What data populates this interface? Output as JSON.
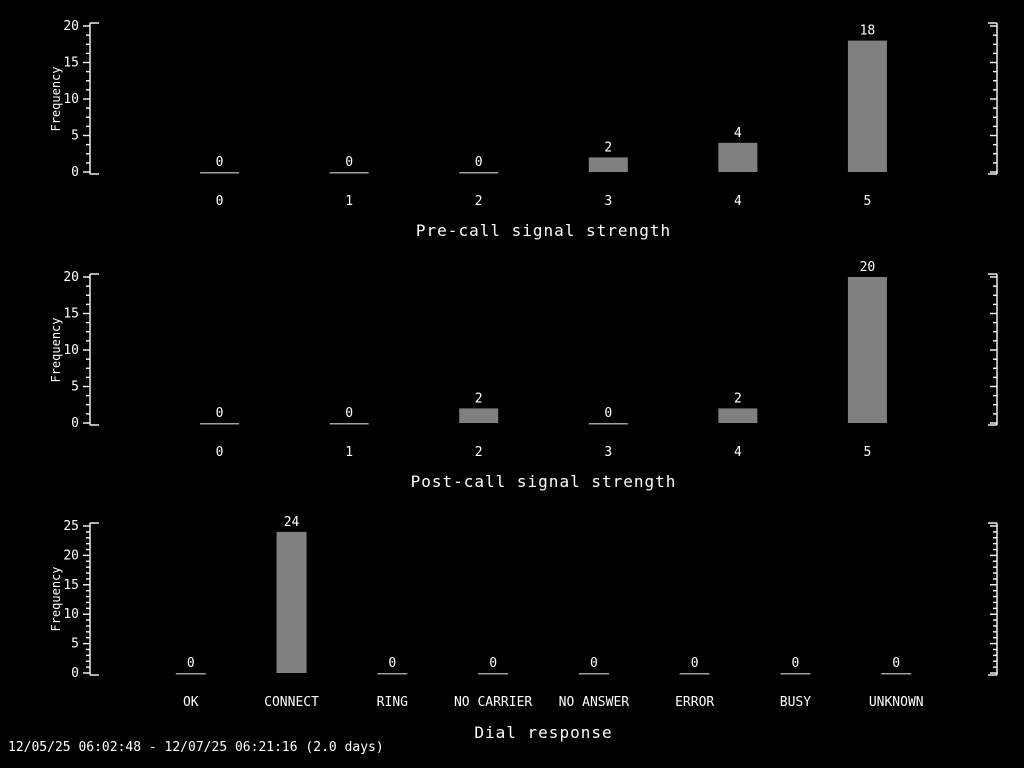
{
  "colors": {
    "background": "#000000",
    "text": "#ffffff",
    "bar": "#808080",
    "zero_line": "#a0a0a0",
    "axis": "#ffffff"
  },
  "footer": {
    "time_range": "12/05/25 06:02:48 - 12/07/25 06:21:16 (2.0 days)"
  },
  "chart_data": [
    {
      "type": "bar",
      "title": "Pre-call signal strength",
      "ylabel": "Frequency",
      "xlabel": "",
      "categories": [
        "0",
        "1",
        "2",
        "3",
        "4",
        "5"
      ],
      "values": [
        0,
        0,
        0,
        2,
        4,
        18
      ],
      "ylim": [
        0,
        20
      ],
      "ytick_interval": 5,
      "ytick_labels": [
        "0",
        "5",
        "10",
        "15",
        "20"
      ],
      "grid": false,
      "legend": false,
      "bar_value_labels": true,
      "right_axis_ticks_only": true
    },
    {
      "type": "bar",
      "title": "Post-call signal strength",
      "ylabel": "Frequency",
      "xlabel": "",
      "categories": [
        "0",
        "1",
        "2",
        "3",
        "4",
        "5"
      ],
      "values": [
        0,
        0,
        2,
        0,
        2,
        20
      ],
      "ylim": [
        0,
        20
      ],
      "ytick_interval": 5,
      "ytick_labels": [
        "0",
        "5",
        "10",
        "15",
        "20"
      ],
      "grid": false,
      "legend": false,
      "bar_value_labels": true,
      "right_axis_ticks_only": true
    },
    {
      "type": "bar",
      "title": "Dial response",
      "ylabel": "Frequency",
      "xlabel": "",
      "categories": [
        "OK",
        "CONNECT",
        "RING",
        "NO CARRIER",
        "NO ANSWER",
        "ERROR",
        "BUSY",
        "UNKNOWN"
      ],
      "values": [
        0,
        24,
        0,
        0,
        0,
        0,
        0,
        0
      ],
      "ylim": [
        0,
        25
      ],
      "ytick_interval": 5,
      "ytick_labels": [
        "0",
        "5",
        "10",
        "15",
        "20",
        "25"
      ],
      "grid": false,
      "legend": false,
      "bar_value_labels": true,
      "right_axis_ticks_only": true
    }
  ]
}
